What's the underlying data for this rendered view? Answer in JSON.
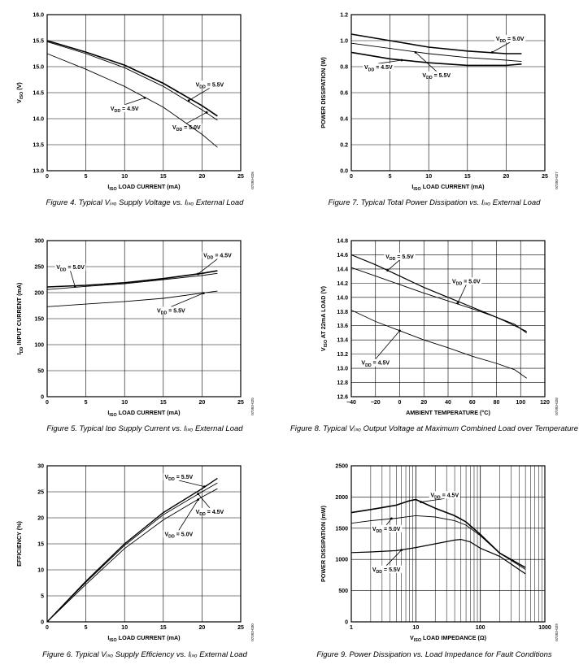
{
  "figures": [
    {
      "caption": "Figure 4. Typical Vᵢₛₒ Supply Voltage vs. Iᵢₛₒ External Load",
      "figure_code": "07393-026"
    },
    {
      "caption": "Figure 7. Typical Total Power Dissipation vs. Iᵢₛₒ External Load",
      "figure_code": "07393-027"
    },
    {
      "caption": "Figure 5. Typical Iᴅᴅ Supply Current vs. Iᵢₛₒ External Load",
      "figure_code": "07393-025"
    },
    {
      "caption": "Figure 8. Typical Vᵢₛₒ Output Voltage at Maximum Combined Load over Temperature",
      "figure_code": "07393-028"
    },
    {
      "caption": "Figure 6. Typical Vᵢₛₒ Supply Efficiency vs. Iᵢₛₒ External Load",
      "figure_code": "07393-030"
    },
    {
      "caption": "Figure 9. Power Dissipation vs. Load Impedance for Fault Conditions",
      "figure_code": "07393-029"
    }
  ],
  "chart_data": [
    {
      "id": "fig4",
      "type": "line",
      "xlabel": "I_ISO LOAD CURRENT (mA)",
      "ylabel": "V_ISO (V)",
      "xlim": [
        0,
        25
      ],
      "ylim": [
        13.0,
        16.0
      ],
      "xticks": [
        0,
        5,
        10,
        15,
        20,
        25
      ],
      "yticks": [
        13.0,
        13.5,
        14.0,
        14.5,
        15.0,
        15.5,
        16.0
      ],
      "tick_decimals": 1,
      "grid": true,
      "series": [
        {
          "name": "V_DD = 5.5V",
          "x": [
            0,
            5,
            10,
            15,
            20,
            22
          ],
          "y": [
            15.5,
            15.28,
            15.03,
            14.68,
            14.25,
            14.05
          ],
          "width": 1.6
        },
        {
          "name": "V_DD = 5.0V",
          "x": [
            0,
            5,
            10,
            15,
            20,
            22
          ],
          "y": [
            15.48,
            15.25,
            14.98,
            14.62,
            14.17,
            13.97
          ],
          "width": 0.9
        },
        {
          "name": "V_DD = 4.5V",
          "x": [
            0,
            5,
            10,
            15,
            20,
            22
          ],
          "y": [
            15.25,
            14.95,
            14.62,
            14.22,
            13.7,
            13.45
          ],
          "width": 0.9
        }
      ]
    },
    {
      "id": "fig7",
      "type": "line",
      "xlabel": "I_ISO LOAD CURRENT (mA)",
      "ylabel": "POWER DISSIPATION (W)",
      "xlim": [
        0,
        25
      ],
      "ylim": [
        0,
        1.2
      ],
      "xticks": [
        0,
        5,
        10,
        15,
        20,
        25
      ],
      "yticks": [
        0,
        0.2,
        0.4,
        0.6,
        0.8,
        1.0,
        1.2
      ],
      "tick_decimals": 1,
      "grid": true,
      "series": [
        {
          "name": "V_DD = 5.0V",
          "x": [
            0,
            5,
            10,
            15,
            20,
            22
          ],
          "y": [
            1.05,
            1.0,
            0.95,
            0.92,
            0.9,
            0.9
          ],
          "width": 1.6
        },
        {
          "name": "V_DD = 5.5V",
          "x": [
            0,
            5,
            10,
            15,
            20,
            22
          ],
          "y": [
            0.98,
            0.94,
            0.9,
            0.87,
            0.85,
            0.84
          ],
          "width": 0.9
        },
        {
          "name": "V_DD = 4.5V",
          "x": [
            0,
            5,
            10,
            15,
            17,
            20,
            22
          ],
          "y": [
            0.91,
            0.86,
            0.83,
            0.81,
            0.81,
            0.81,
            0.82
          ],
          "width": 1.6
        }
      ]
    },
    {
      "id": "fig5",
      "type": "line",
      "xlabel": "I_ISO LOAD CURRENT (mA)",
      "ylabel": "I_DD INPUT CURRENT (mA)",
      "xlim": [
        0,
        25
      ],
      "ylim": [
        0,
        300
      ],
      "xticks": [
        0,
        5,
        10,
        15,
        20,
        25
      ],
      "yticks": [
        0,
        50,
        100,
        150,
        200,
        250,
        300
      ],
      "tick_decimals": 0,
      "grid": true,
      "series": [
        {
          "name": "V_DD = 4.5V",
          "x": [
            0,
            5,
            10,
            15,
            20,
            22
          ],
          "y": [
            211,
            214,
            219,
            227,
            237,
            242
          ],
          "width": 1.6
        },
        {
          "name": "V_DD = 5.0V",
          "x": [
            0,
            5,
            10,
            15,
            20,
            22
          ],
          "y": [
            206,
            212,
            217,
            225,
            233,
            237
          ],
          "width": 0.9
        },
        {
          "name": "V_DD = 5.5V",
          "x": [
            0,
            5,
            10,
            15,
            20,
            22
          ],
          "y": [
            173,
            178,
            183,
            189,
            199,
            203
          ],
          "width": 0.9
        }
      ]
    },
    {
      "id": "fig8",
      "type": "line",
      "xlabel": "AMBIENT TEMPERATURE (°C)",
      "ylabel": "V_ISO AT 22mA LOAD (V)",
      "xlim": [
        -40,
        120
      ],
      "ylim": [
        12.6,
        14.8
      ],
      "xticks": [
        -40,
        -20,
        0,
        20,
        40,
        60,
        80,
        100,
        120
      ],
      "yticks": [
        12.6,
        12.8,
        13.0,
        13.2,
        13.4,
        13.6,
        13.8,
        14.0,
        14.2,
        14.4,
        14.6,
        14.8
      ],
      "tick_decimals": 1,
      "grid": true,
      "series": [
        {
          "name": "V_DD = 5.5V",
          "x": [
            -40,
            -20,
            0,
            20,
            40,
            60,
            80,
            95,
            105
          ],
          "y": [
            14.6,
            14.46,
            14.3,
            14.14,
            14.0,
            13.86,
            13.72,
            13.62,
            13.5
          ],
          "width": 1.2
        },
        {
          "name": "V_DD = 5.0V",
          "x": [
            -40,
            -20,
            0,
            20,
            40,
            60,
            80,
            95,
            105
          ],
          "y": [
            14.42,
            14.3,
            14.18,
            14.06,
            13.95,
            13.84,
            13.72,
            13.6,
            13.52
          ],
          "width": 0.9
        },
        {
          "name": "V_DD = 4.5V",
          "x": [
            -40,
            -20,
            0,
            20,
            40,
            60,
            80,
            95,
            105
          ],
          "y": [
            13.82,
            13.66,
            13.53,
            13.4,
            13.29,
            13.17,
            13.07,
            12.98,
            12.86
          ],
          "width": 0.9
        }
      ]
    },
    {
      "id": "fig6",
      "type": "line",
      "xlabel": "I_ISO LOAD CURRENT (mA)",
      "ylabel": "EFFICIENCY (%)",
      "xlim": [
        0,
        25
      ],
      "ylim": [
        0,
        30
      ],
      "xticks": [
        0,
        5,
        10,
        15,
        20,
        25
      ],
      "yticks": [
        0,
        5,
        10,
        15,
        20,
        25,
        30
      ],
      "tick_decimals": 0,
      "grid": true,
      "series": [
        {
          "name": "V_DD = 5.5V",
          "x": [
            0,
            5,
            10,
            15,
            20,
            22
          ],
          "y": [
            0,
            7.8,
            15.0,
            21.0,
            25.6,
            27.6
          ],
          "width": 1.4
        },
        {
          "name": "V_DD = 4.5V",
          "x": [
            0,
            5,
            10,
            15,
            20,
            22
          ],
          "y": [
            0,
            7.6,
            14.7,
            20.6,
            25.0,
            26.7
          ],
          "width": 0.9
        },
        {
          "name": "V_DD = 5.0V",
          "x": [
            0,
            5,
            10,
            15,
            20,
            22
          ],
          "y": [
            0,
            7.2,
            14.1,
            19.6,
            24.0,
            25.6
          ],
          "width": 0.9
        }
      ]
    },
    {
      "id": "fig9",
      "type": "line",
      "xscale": "log",
      "xlabel": "V_ISO LOAD IMPEDANCE (Ω)",
      "ylabel": "POWER DISSIPATION (mW)",
      "xlim": [
        1,
        1000
      ],
      "ylim": [
        0,
        2500
      ],
      "xticks": [
        1,
        10,
        100,
        1000
      ],
      "yticks": [
        0,
        500,
        1000,
        1500,
        2000,
        2500
      ],
      "tick_decimals": 0,
      "grid": true,
      "series": [
        {
          "name": "V_DD = 4.5V",
          "x": [
            1,
            2,
            5,
            8,
            10,
            20,
            40,
            60,
            100,
            200,
            500
          ],
          "y": [
            1750,
            1800,
            1870,
            1940,
            1960,
            1820,
            1700,
            1600,
            1400,
            1100,
            870
          ],
          "width": 1.6
        },
        {
          "name": "V_DD = 5.0V",
          "x": [
            1,
            2,
            5,
            10,
            20,
            40,
            60,
            100,
            200,
            500
          ],
          "y": [
            1580,
            1620,
            1660,
            1700,
            1680,
            1620,
            1550,
            1380,
            1100,
            840
          ],
          "width": 0.9
        },
        {
          "name": "V_DD = 5.5V",
          "x": [
            1,
            2,
            5,
            10,
            20,
            40,
            50,
            70,
            100,
            200,
            500
          ],
          "y": [
            1110,
            1120,
            1140,
            1190,
            1250,
            1310,
            1320,
            1280,
            1180,
            1050,
            770
          ],
          "width": 1.2
        }
      ]
    }
  ]
}
